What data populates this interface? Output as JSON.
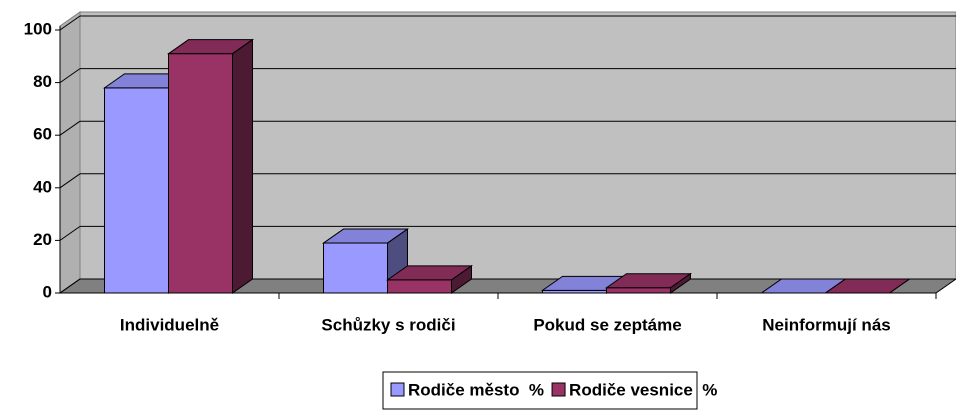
{
  "chart_data": {
    "type": "bar3d",
    "categories": [
      "Individuelně",
      "Schůzky s rodiči",
      "Pokud se zeptáme",
      "Neinformují nás"
    ],
    "series": [
      {
        "name": "Rodiče město  %",
        "color": "#9999ff",
        "values": [
          78,
          19,
          1,
          0
        ]
      },
      {
        "name": "Rodiče vesnice  %",
        "color": "#993366",
        "values": [
          91,
          5,
          2,
          0
        ]
      }
    ],
    "ylim": [
      0,
      100
    ],
    "yticks": [
      0,
      20,
      40,
      60,
      80,
      100
    ],
    "grid": true,
    "legend": "bottom"
  }
}
